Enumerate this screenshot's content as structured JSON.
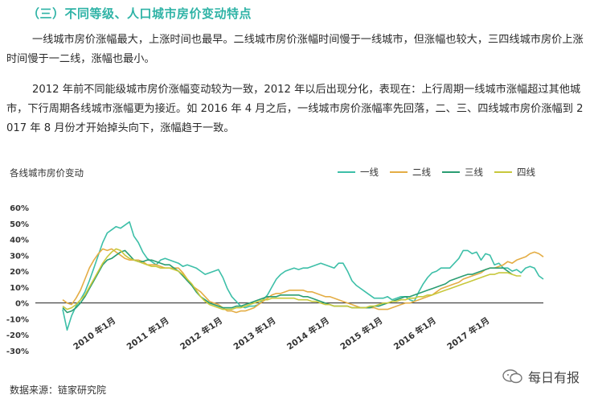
{
  "section": {
    "title": "（三）不同等级、人口城市房价变动特点"
  },
  "paragraphs": [
    "一线城市房价涨幅最大，上涨时间也最早。二线城市房价涨幅时间慢于一线城市，但涨幅也较大，三四线城市房价上涨时间慢于一二线，涨幅也最小。",
    "2012 年前不同能级城市房价涨幅变动较为一致，2012 年以后出现分化，表现在：上行周期一线城市涨幅超过其他城市，下行周期各线城市涨幅更为接近。如 2016 年 4 月之后，一线城市房价涨幅率先回落，二、三、四线城市房价涨幅到 2017 年 8 月份才开始掉头向下，涨幅趋于一致。"
  ],
  "chart": {
    "title": "各线城市房价变动",
    "source": "数据来源：链家研究院"
  },
  "watermark": {
    "text": "每日有报",
    "icon": "wechat-bubble-icon"
  },
  "colors": {
    "accent": "#2fb3a6",
    "tier1": "#3dbfa8",
    "tier2": "#e4ad45",
    "tier3": "#2a9d72",
    "tier4": "#c8c83c"
  },
  "chart_data": {
    "type": "line",
    "title": "各线城市房价变动",
    "xlabel": "",
    "ylabel": "",
    "ylim": [
      -30,
      60
    ],
    "yticks": [
      "60%",
      "50%",
      "40%",
      "30%",
      "20%",
      "10%",
      "0%",
      "-10%",
      "-20%",
      "-30%"
    ],
    "x_start": "2009-01",
    "x_tick_labels": [
      {
        "label": "2010 年1月",
        "month_index": 12
      },
      {
        "label": "2011 年1月",
        "month_index": 24
      },
      {
        "label": "2012 年1月",
        "month_index": 36
      },
      {
        "label": "2013 年1月",
        "month_index": 48
      },
      {
        "label": "2014 年1月",
        "month_index": 60
      },
      {
        "label": "2015 年1月",
        "month_index": 72
      },
      {
        "label": "2016 年1月",
        "month_index": 84
      },
      {
        "label": "2017 年1月",
        "month_index": 96
      }
    ],
    "legend_position": "top-right",
    "grid": false,
    "series": [
      {
        "name": "一线",
        "color": "#3dbfa8",
        "values": [
          -4,
          -17,
          -8,
          -2,
          2,
          7,
          14,
          22,
          30,
          38,
          44,
          46,
          48,
          47,
          49,
          51,
          42,
          38,
          32,
          28,
          26,
          24,
          27,
          28,
          27,
          26,
          25,
          23,
          24,
          23,
          22,
          20,
          18,
          19,
          20,
          21,
          16,
          9,
          4,
          1,
          -2,
          -3,
          -2,
          -2,
          -1,
          2,
          5,
          10,
          15,
          18,
          20,
          21,
          22,
          21,
          22,
          22,
          23,
          24,
          25,
          24,
          23,
          22,
          25,
          25,
          20,
          14,
          11,
          9,
          7,
          5,
          3,
          3,
          3,
          4,
          2,
          3,
          4,
          4,
          2,
          1,
          7,
          12,
          16,
          19,
          20,
          22,
          22,
          22,
          25,
          28,
          33,
          33,
          31,
          32,
          27,
          31,
          30,
          24,
          25,
          22,
          22,
          20,
          21,
          19,
          22,
          23,
          22,
          17,
          15
        ]
      },
      {
        "name": "二线",
        "color": "#e4ad45",
        "values": [
          2,
          0,
          -1,
          3,
          8,
          15,
          22,
          27,
          31,
          34,
          33,
          34,
          32,
          30,
          28,
          27,
          27,
          27,
          26,
          24,
          24,
          24,
          23,
          22,
          22,
          22,
          22,
          19,
          15,
          11,
          9,
          7,
          4,
          1,
          0,
          -1,
          -3,
          -5,
          -5,
          -6,
          -5,
          -5,
          -4,
          -3,
          -1,
          1,
          3,
          5,
          6,
          6,
          7,
          8,
          8,
          8,
          8,
          7,
          7,
          6,
          5,
          4,
          4,
          3,
          2,
          1,
          0,
          -1,
          -2,
          -3,
          -3,
          -3,
          -3,
          -4,
          -4,
          -4,
          -3,
          -2,
          -1,
          0,
          0,
          1,
          2,
          3,
          4,
          5,
          7,
          9,
          10,
          11,
          12,
          13,
          15,
          16,
          17,
          18,
          19,
          21,
          22,
          22,
          23,
          24,
          26,
          25,
          27,
          28,
          29,
          31,
          32,
          31,
          29
        ]
      },
      {
        "name": "三线",
        "color": "#2a9d72",
        "values": [
          -3,
          -6,
          -5,
          -3,
          0,
          4,
          9,
          14,
          19,
          24,
          27,
          28,
          30,
          32,
          33,
          30,
          27,
          26,
          26,
          27,
          27,
          26,
          25,
          24,
          24,
          22,
          20,
          17,
          14,
          11,
          7,
          4,
          2,
          0,
          -1,
          -2,
          -3,
          -3,
          -3,
          -2,
          -2,
          -1,
          0,
          1,
          2,
          3,
          4,
          4,
          4,
          5,
          5,
          5,
          5,
          5,
          4,
          4,
          3,
          2,
          1,
          0,
          -1,
          -2,
          -2,
          -2,
          -2,
          -3,
          -3,
          -3,
          -3,
          -3,
          -2,
          -2,
          -1,
          0,
          1,
          2,
          3,
          4,
          4,
          5,
          6,
          7,
          8,
          9,
          10,
          11,
          12,
          14,
          15,
          16,
          17,
          18,
          18,
          19,
          20,
          21,
          22,
          22,
          22,
          22,
          20,
          18
        ]
      },
      {
        "name": "四线",
        "color": "#c8c83c",
        "values": [
          -2,
          -4,
          -3,
          -1,
          2,
          5,
          10,
          15,
          20,
          25,
          29,
          32,
          34,
          33,
          30,
          28,
          27,
          26,
          25,
          24,
          23,
          23,
          22,
          22,
          22,
          21,
          20,
          18,
          15,
          12,
          8,
          4,
          1,
          -1,
          -2,
          -3,
          -4,
          -4,
          -4,
          -3,
          -3,
          -2,
          -1,
          0,
          1,
          2,
          2,
          3,
          3,
          3,
          3,
          3,
          3,
          2,
          2,
          2,
          1,
          1,
          0,
          -1,
          -1,
          -2,
          -2,
          -2,
          -2,
          -3,
          -3,
          -3,
          -3,
          -2,
          -2,
          -1,
          0,
          0,
          1,
          1,
          2,
          2,
          3,
          3,
          4,
          4,
          5,
          5,
          6,
          7,
          8,
          9,
          10,
          11,
          12,
          13,
          14,
          15,
          16,
          17,
          18,
          18,
          19,
          19,
          19,
          18,
          17,
          17
        ]
      }
    ]
  }
}
